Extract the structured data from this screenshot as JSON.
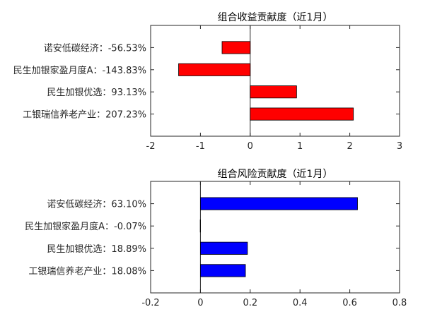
{
  "chart_data": [
    {
      "type": "bar",
      "orientation": "horizontal",
      "title": "组合收益贡献度（近1月）",
      "categories": [
        "诺安低碳经济：-56.53%",
        "民生加银家盈月度A：-143.83%",
        "民生加银优选：93.13%",
        "工银瑞信养老产业：207.23%"
      ],
      "values": [
        -0.5653,
        -1.4383,
        0.9313,
        2.0723
      ],
      "xlim": [
        -2,
        3
      ],
      "xticks": [
        "-2",
        "-1",
        "0",
        "1",
        "2",
        "3"
      ],
      "xtick_values": [
        -2,
        -1,
        0,
        1,
        2,
        3
      ],
      "bar_color": "#ff0000",
      "grid": false
    },
    {
      "type": "bar",
      "orientation": "horizontal",
      "title": "组合风险贡献度（近1月）",
      "categories": [
        "诺安低碳经济：63.10%",
        "民生加银家盈月度A：-0.07%",
        "民生加银优选：18.89%",
        "工银瑞信养老产业：18.08%"
      ],
      "values": [
        0.631,
        -0.0007,
        0.1889,
        0.1808
      ],
      "xlim": [
        -0.2,
        0.8
      ],
      "xticks": [
        "-0.2",
        "0",
        "0.2",
        "0.4",
        "0.6",
        "0.8"
      ],
      "xtick_values": [
        -0.2,
        0,
        0.2,
        0.4,
        0.6,
        0.8
      ],
      "bar_color": "#0000ff",
      "grid": false
    }
  ]
}
